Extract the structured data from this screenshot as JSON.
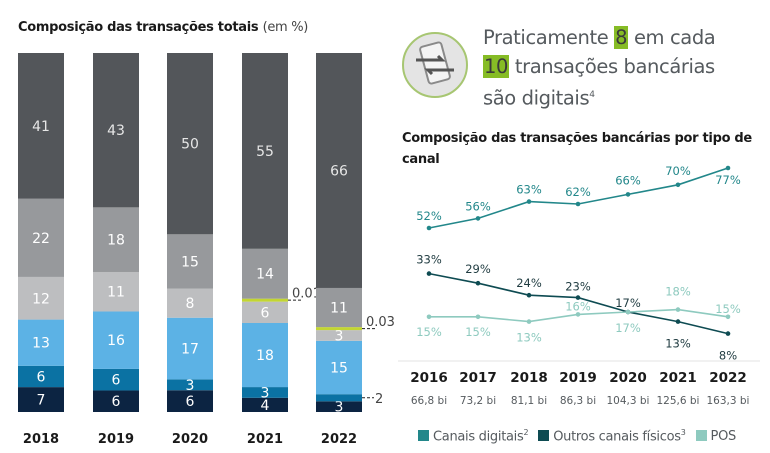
{
  "left_chart": {
    "title": "Composição das transações totais",
    "unit": "(em %)"
  },
  "headline": {
    "pre": "Praticamente",
    "num1": "8",
    "mid": "em cada",
    "num2": "10",
    "post": "transações bancárias",
    "line3": "são digitais",
    "footnote": "4",
    "icon": "smartphone-transfer-icon"
  },
  "right_chart": {
    "title": "Composição das transações bancárias por tipo de canal"
  },
  "colors": {
    "seg1": "#0c2442",
    "seg2": "#0b72a3",
    "seg3": "#5cb2e5",
    "seg4": "#bdbec0",
    "seg_lime": "#c3d632",
    "seg5": "#97999c",
    "seg6": "#53565a",
    "digital": "#22878a",
    "outros": "#0e4b52",
    "pos": "#8ecab f",
    "highlight": "#86bc25"
  },
  "chart_data": [
    {
      "type": "bar",
      "stacked": true,
      "title": "Composição das transações totais (em %)",
      "categories": [
        "2018",
        "2019",
        "2020",
        "2021",
        "2022"
      ],
      "series": [
        {
          "values": [
            7,
            6,
            6,
            4,
            3
          ],
          "labels": [
            "7",
            "6",
            "6",
            "4",
            "3"
          ]
        },
        {
          "values": [
            6,
            6,
            3,
            3,
            2
          ],
          "labels": [
            "6",
            "6",
            "3",
            "3",
            "2"
          ]
        },
        {
          "values": [
            13,
            16,
            17,
            18,
            15
          ],
          "labels": [
            "13",
            "16",
            "17",
            "18",
            "15"
          ]
        },
        {
          "values": [
            12,
            11,
            8,
            6,
            3
          ],
          "labels": [
            "12",
            "11",
            "8",
            "6",
            "3"
          ]
        },
        {
          "values": [
            0,
            0,
            0,
            0.01,
            0.03
          ],
          "labels": [
            "",
            "",
            "",
            "0.01",
            "0.03"
          ]
        },
        {
          "values": [
            22,
            18,
            15,
            14,
            11
          ],
          "labels": [
            "22",
            "18",
            "15",
            "14",
            "11"
          ]
        },
        {
          "values": [
            41,
            43,
            50,
            55,
            66
          ],
          "labels": [
            "41",
            "43",
            "50",
            "55",
            "66"
          ]
        }
      ]
    },
    {
      "type": "line",
      "title": "Composição das transações bancárias por tipo de canal",
      "categories": [
        "2016",
        "2017",
        "2018",
        "2019",
        "2020",
        "2021",
        "2022"
      ],
      "sublabels": [
        "66,8 bi",
        "73,2 bi",
        "81,1 bi",
        "86,3 bi",
        "104,3 bi",
        "125,6 bi",
        "163,3 bi"
      ],
      "series": [
        {
          "name": "Canais digitais",
          "sup": "2",
          "values": [
            52,
            56,
            63,
            62,
            66,
            70,
            77
          ]
        },
        {
          "name": "Outros canais físicos",
          "sup": "3",
          "values": [
            33,
            29,
            24,
            23,
            17,
            13,
            8
          ]
        },
        {
          "name": "POS",
          "sup": "",
          "values": [
            15,
            15,
            13,
            16,
            17,
            18,
            15
          ]
        }
      ],
      "value_suffix": "%"
    }
  ]
}
